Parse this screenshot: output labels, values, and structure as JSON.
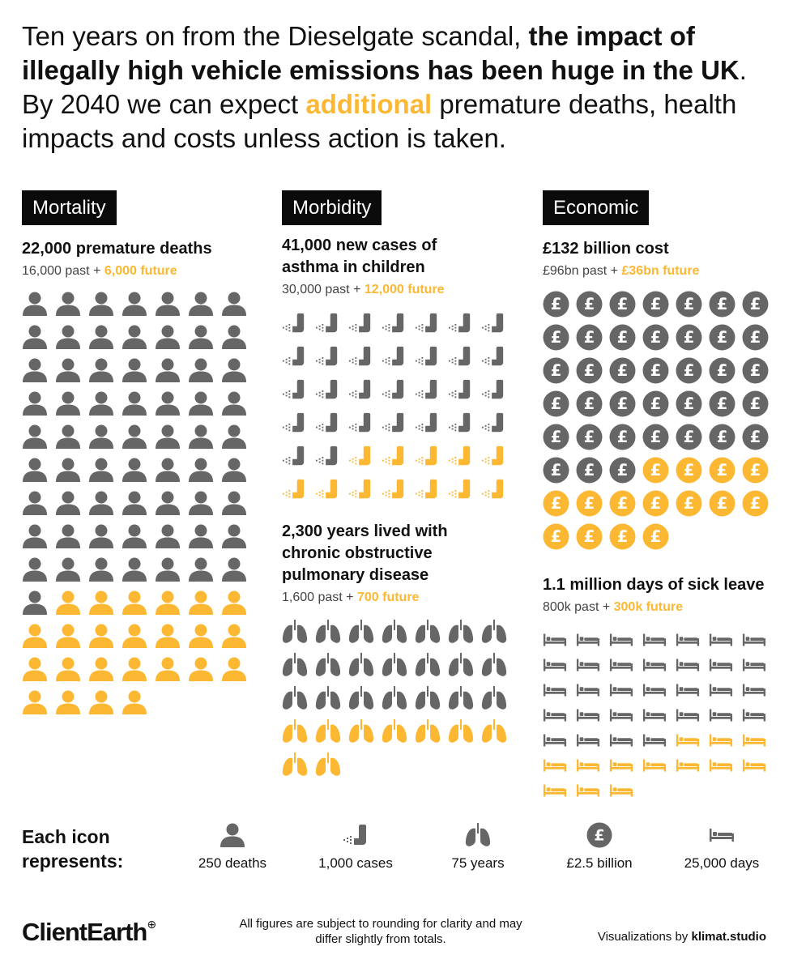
{
  "headline": {
    "part1": "Ten years on from the Dieselgate scandal, ",
    "bold": "the impact of illegally high vehicle emissions has been huge in the UK",
    "part2": ".",
    "part3": " By 2040 we can expect ",
    "accent": "additional",
    "part4": " premature deaths, health impacts and costs unless action is taken."
  },
  "colors": {
    "past": "#666666",
    "future": "#FCB833",
    "tag_bg": "#0b0b0b"
  },
  "columns": {
    "mortality": {
      "tag": "Mortality",
      "deaths": {
        "title": "22,000 premature deaths",
        "past": "16,000 past",
        "plus": " + ",
        "future": "6,000 future"
      }
    },
    "morbidity": {
      "tag": "Morbidity",
      "asthma": {
        "title": "41,000 new cases of asthma in children",
        "past": "30,000 past",
        "plus": " + ",
        "future": "12,000 future"
      },
      "copd": {
        "title": "2,300 years lived with chronic obstructive pulmonary disease",
        "past": "1,600 past",
        "plus": " + ",
        "future": "700 future"
      }
    },
    "economic": {
      "tag": "Economic",
      "cost": {
        "title": "£132 billion cost",
        "past": "£96bn past",
        "plus": " + ",
        "future": "£36bn future"
      },
      "sick": {
        "title": "1.1 million days of sick leave",
        "past": "800k past",
        "plus": " + ",
        "future": "300k future"
      }
    }
  },
  "chart_data": [
    {
      "type": "pictogram",
      "name": "premature deaths",
      "icon": "person-icon",
      "unit_per_icon": 250,
      "columns": 7,
      "past_icons": 64,
      "future_icons": 24,
      "past_value": 16000,
      "future_value": 6000,
      "total": 22000
    },
    {
      "type": "pictogram",
      "name": "asthma cases",
      "icon": "inhaler-icon",
      "unit_per_icon": 1000,
      "columns": 7,
      "past_icons": 30,
      "future_icons": 12,
      "past_value": 30000,
      "future_value": 12000,
      "total": 41000
    },
    {
      "type": "pictogram",
      "name": "COPD years",
      "icon": "lungs-icon",
      "unit_per_icon": 75,
      "columns": 7,
      "past_icons": 21,
      "future_icons": 9,
      "past_value": 1600,
      "future_value": 700,
      "total": 2300
    },
    {
      "type": "pictogram",
      "name": "economic cost",
      "icon": "pound-coin-icon",
      "unit_per_icon": 2.5,
      "unit": "£bn",
      "columns": 7,
      "past_icons": 38,
      "future_icons": 15,
      "past_value": 96,
      "future_value": 36,
      "total": 132
    },
    {
      "type": "pictogram",
      "name": "sick leave days",
      "icon": "bed-icon",
      "unit_per_icon": 25000,
      "columns": 7,
      "past_icons": 32,
      "future_icons": 13,
      "past_value": 800000,
      "future_value": 300000,
      "total": 1100000
    }
  ],
  "legend": {
    "title": "Each icon represents:",
    "items": [
      {
        "icon": "person-icon",
        "label": "250 deaths"
      },
      {
        "icon": "inhaler-icon",
        "label": "1,000 cases"
      },
      {
        "icon": "lungs-icon",
        "label": "75 years"
      },
      {
        "icon": "pound-coin-icon",
        "label": "£2.5 billion"
      },
      {
        "icon": "bed-icon",
        "label": "25,000 days"
      }
    ]
  },
  "footer": {
    "logo": "ClientEarth",
    "logo_mark": "⊕",
    "note": "All figures are subject to rounding for clarity and may differ slightly from totals.",
    "credit_prefix": "Visualizations by ",
    "credit_name": "klimat.studio"
  }
}
